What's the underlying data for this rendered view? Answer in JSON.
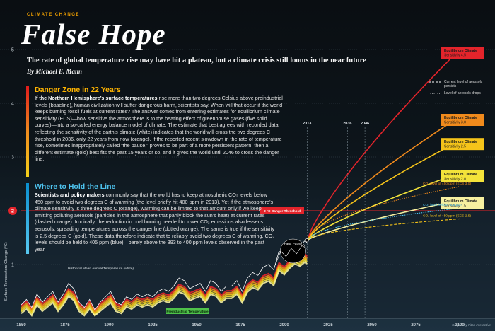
{
  "header": {
    "kicker": "CLIMATE CHANGE",
    "title": "False Hope",
    "subtitle": "The rate of global temperature rise may have hit a plateau, but a climate crisis still looms in the near future",
    "byline": "By Michael E. Mann"
  },
  "sections": [
    {
      "heading": "Danger Zone in 22 Years",
      "lead": "If the Northern Hemisphere’s surface temperatures",
      "body": " rise more than two degrees Celsius above preindustrial levels (baseline), human civilization will suffer dangerous harm, scientists say. When will that occur if the world keeps burning fossil fuels at current rates? The answer comes from entering estimates for equilibrium climate sensitivity (ECS)—how sensitive the atmosphere is to the heating effect of greenhouse gases (five solid curves)—into a so-called energy balance model of climate. The estimate that best agrees with recorded data reflecting the sensitivity of the earth’s climate (white) indicates that the world will cross the two degrees C threshold in 2036, only 22 years from now (orange). If the reported recent slowdown in the rate of temperature rise, sometimes inappropriately called “the pause,” proves to be part of a more persistent pattern, then a different estimate (gold) best fits the past 15 years or so, and it gives the world until 2046 to cross the danger line."
    },
    {
      "heading": "Where to Hold the Line",
      "lead": "Scientists and policy makers",
      "body": " commonly say that the world has to keep atmospheric CO₂ levels below 450 ppm to avoid two degrees C of warming (the level briefly hit 400 ppm in 2013). Yet if the atmosphere’s climate sensitivity is three degrees C (orange), warming can be limited to that amount only if we keep emitting polluting aerosols (particles in the atmosphere that partly block the sun’s heat) at current rates (dashed orange). Ironically, the reduction in coal burning needed to lower CO₂ emissions also lessens aerosols, spreading temperatures across the danger line (dotted orange). The same is true if the sensitivity is 2.5 degrees C (gold). These data therefore indicate that to reliably avoid two degrees C of warming, CO₂ levels should be held to 405 ppm (blue)—barely above the 393 to 400 ppm levels observed in the past year."
    }
  ],
  "legend": {
    "dashed": "Current level of aerosols persists",
    "dotted": "Level of aerosols drops"
  },
  "chart_data": {
    "type": "line",
    "ylabel": "Surface Temperature Change (°C)",
    "xlim": [
      1850,
      2100
    ],
    "ylim": [
      0,
      5.2
    ],
    "x_ticks": [
      1850,
      1875,
      1900,
      1925,
      1950,
      1975,
      2000,
      2025,
      2050,
      2075,
      2100
    ],
    "y_ticks": [
      1,
      2,
      3,
      4,
      5
    ],
    "markers": [
      {
        "x": 2013,
        "label": "2013"
      },
      {
        "x": 2036,
        "label": "2036"
      },
      {
        "x": 2046,
        "label": "2046"
      }
    ],
    "threshold": {
      "y": 2,
      "label": "2 °C Danger Threshold"
    },
    "baseline_label": "Preindustrial Temperature",
    "historical_label": "Historical Mean Annual Temperature (white)",
    "pause_label": "Faux Pause",
    "observed": {
      "name": "Historical Mean Annual Temperature",
      "x": [
        1850,
        1853,
        1856,
        1859,
        1862,
        1865,
        1868,
        1871,
        1874,
        1877,
        1880,
        1883,
        1886,
        1889,
        1892,
        1895,
        1898,
        1901,
        1904,
        1907,
        1910,
        1913,
        1916,
        1919,
        1922,
        1925,
        1928,
        1931,
        1934,
        1937,
        1940,
        1943,
        1946,
        1949,
        1952,
        1955,
        1958,
        1961,
        1964,
        1967,
        1970,
        1973,
        1976,
        1979,
        1982,
        1985,
        1988,
        1991,
        1994,
        1997,
        2000,
        2003,
        2006,
        2009,
        2012,
        2013
      ],
      "y": [
        0.25,
        0.35,
        0.2,
        0.45,
        0.3,
        0.4,
        0.5,
        0.3,
        0.45,
        0.65,
        0.55,
        0.3,
        0.2,
        0.35,
        0.15,
        0.3,
        0.4,
        0.5,
        0.3,
        0.25,
        0.4,
        0.35,
        0.45,
        0.4,
        0.45,
        0.4,
        0.5,
        0.55,
        0.5,
        0.6,
        0.75,
        0.7,
        0.55,
        0.6,
        0.65,
        0.5,
        0.7,
        0.65,
        0.5,
        0.6,
        0.6,
        0.7,
        0.5,
        0.75,
        0.85,
        0.8,
        0.95,
        1.0,
        0.9,
        1.25,
        1.15,
        1.3,
        1.4,
        1.35,
        1.45,
        1.4
      ]
    },
    "series": [
      {
        "name": "Equilibrium Climate Sensitivity 4.5",
        "color": "#e3242b",
        "y2100": 5.0
      },
      {
        "name": "Equilibrium Climate Sensitivity 3.0",
        "color": "#f08a1c",
        "y2100": 3.75
      },
      {
        "name": "Equilibrium Climate Sensitivity 2.5",
        "color": "#f5c41a",
        "y2100": 3.3
      },
      {
        "name": "Equilibrium Climate Sensitivity 2.0",
        "color": "#f3e33a",
        "y2100": 2.7
      },
      {
        "name": "Equilibrium Climate Sensitivity 1.5",
        "color": "#f6f0a0",
        "y2100": 2.2
      }
    ],
    "scenarios": [
      {
        "name": "CO₂ level of 450 ppm (ECS 3.0)",
        "color": "#f08a1c",
        "style": "dotted",
        "y2100": 2.45
      },
      {
        "name": "CO₂ level held at 405 ppm",
        "color": "#4ec3ef",
        "style": "dotted",
        "y2100": 2.05
      },
      {
        "name": "CO₂ level of 450 ppm (ECS 2.5)",
        "color": "#f5c41a",
        "style": "dashed",
        "y2100": 1.85
      }
    ],
    "credit": "Graphic by Pitch Interactive"
  }
}
